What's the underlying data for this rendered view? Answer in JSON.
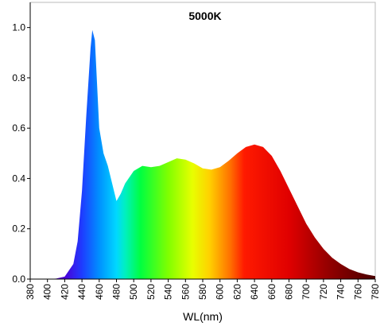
{
  "chart_data": {
    "type": "area",
    "title": "5000K",
    "x_label": "WL(nm)",
    "x": [
      380,
      390,
      400,
      410,
      420,
      430,
      435,
      440,
      445,
      450,
      452,
      455,
      460,
      465,
      470,
      475,
      480,
      485,
      490,
      500,
      510,
      520,
      530,
      540,
      550,
      560,
      570,
      580,
      590,
      600,
      610,
      620,
      630,
      640,
      650,
      660,
      670,
      680,
      690,
      700,
      710,
      720,
      730,
      740,
      750,
      760,
      770,
      780
    ],
    "values": [
      0,
      0,
      0,
      0.002,
      0.01,
      0.06,
      0.15,
      0.35,
      0.65,
      0.92,
      0.99,
      0.95,
      0.6,
      0.5,
      0.45,
      0.38,
      0.31,
      0.34,
      0.38,
      0.43,
      0.45,
      0.445,
      0.45,
      0.465,
      0.48,
      0.475,
      0.46,
      0.44,
      0.435,
      0.445,
      0.47,
      0.5,
      0.525,
      0.535,
      0.525,
      0.49,
      0.43,
      0.36,
      0.29,
      0.22,
      0.165,
      0.12,
      0.085,
      0.06,
      0.04,
      0.027,
      0.018,
      0.012
    ],
    "xlim": [
      380,
      780
    ],
    "xticks": [
      380,
      400,
      420,
      440,
      460,
      480,
      500,
      520,
      540,
      560,
      580,
      600,
      620,
      640,
      660,
      680,
      700,
      720,
      740,
      760,
      780
    ],
    "ylim": [
      0,
      1.1
    ],
    "yticks": [
      {
        "value": 0,
        "label": "0.0"
      },
      0.2,
      0.4,
      0.6,
      0.8,
      {
        "value": 1,
        "label": "1.0"
      }
    ]
  }
}
